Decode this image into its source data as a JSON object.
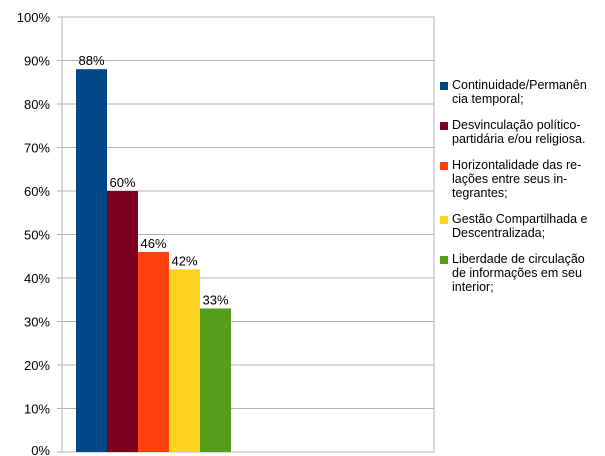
{
  "chart_data": {
    "type": "bar",
    "title": "",
    "xlabel": "",
    "ylabel": "",
    "ylim": [
      0,
      100
    ],
    "y_ticks": [
      "0%",
      "10%",
      "20%",
      "30%",
      "40%",
      "50%",
      "60%",
      "70%",
      "80%",
      "90%",
      "100%"
    ],
    "grid": true,
    "legend_position": "right",
    "series": [
      {
        "name": "Continuidade/Permanência temporal;",
        "legend_lines": [
          "Continuidade/Permanên",
          "cia temporal;"
        ],
        "value": 88,
        "label": "88%",
        "color": "#004586"
      },
      {
        "name": "Desvinculação político-partidária e/ou religiosa.",
        "legend_lines": [
          "Desvinculação político-",
          "partidária e/ou religiosa."
        ],
        "value": 60,
        "label": "60%",
        "color": "#7e0021"
      },
      {
        "name": "Horizontalidade das relações entre seus integrantes",
        "legend_lines": [
          "Horizontalidade das re-",
          "lações entre seus in-",
          "tegrantes;"
        ],
        "value": 46,
        "label": "46%",
        "color": "#ff420e"
      },
      {
        "name": "Gestão Compartilhada e Descentralizada;",
        "legend_lines": [
          "Gestão Compartilhada e",
          "Descentralizada;"
        ],
        "value": 42,
        "label": "42%",
        "color": "#ffd320"
      },
      {
        "name": "Liberdade de circulação de informações em seu interior;",
        "legend_lines": [
          "Liberdade de circulação",
          "de informações em seu",
          "interior;"
        ],
        "value": 33,
        "label": "33%",
        "color": "#579d1c"
      }
    ]
  }
}
